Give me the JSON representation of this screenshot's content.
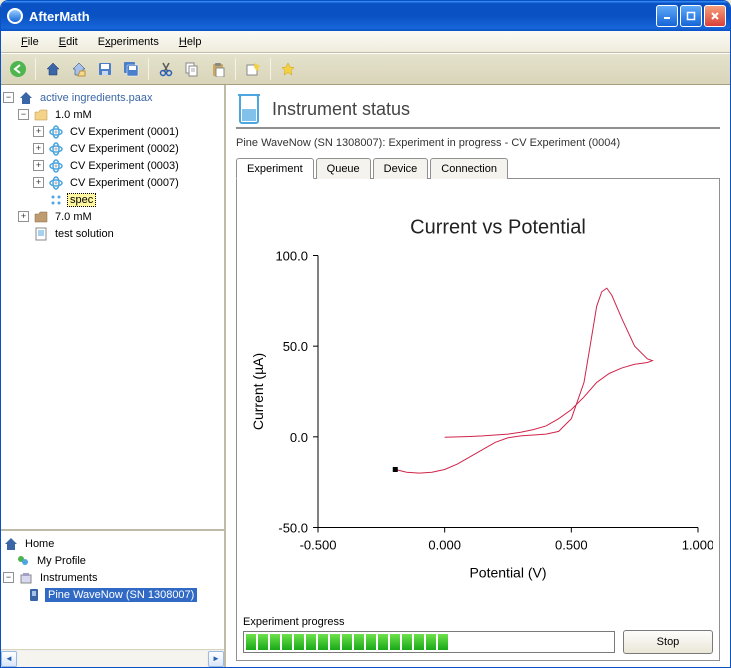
{
  "window": {
    "title": "AfterMath",
    "accent": "#0a52c3"
  },
  "menu": {
    "items": [
      "File",
      "Edit",
      "Experiments",
      "Help"
    ]
  },
  "toolbar": {
    "icons": [
      "back",
      "home",
      "home-open",
      "save",
      "save-multi",
      "|",
      "cut",
      "copy",
      "paste",
      "|",
      "run",
      "|",
      "favorite"
    ]
  },
  "tree": {
    "root": "active ingredients.paax",
    "folder1": {
      "label": "1.0 mM",
      "expanded": true
    },
    "experiments": [
      "CV Experiment (0001)",
      "CV Experiment (0002)",
      "CV Experiment (0003)",
      "CV Experiment (0007)"
    ],
    "spec_label": "spec",
    "folder2": {
      "label": "7.0 mM",
      "expanded": false
    },
    "item2": "test solution"
  },
  "nav": {
    "home": "Home",
    "profile": "My Profile",
    "instruments": "Instruments",
    "device": "Pine WaveNow (SN 1308007)"
  },
  "panel": {
    "title": "Instrument status",
    "status": "Pine WaveNow (SN 1308007): Experiment in progress - CV Experiment (0004)",
    "tabs": [
      "Experiment",
      "Queue",
      "Device",
      "Connection"
    ],
    "active_tab": 0
  },
  "chart": {
    "type": "line",
    "title": "Current vs Potential",
    "xlabel": "Potential (V)",
    "ylabel": "Current (µA)",
    "xlim": [
      -0.5,
      1.0
    ],
    "ylim": [
      -50.0,
      100.0
    ],
    "xticks": [
      -0.5,
      0.0,
      0.5,
      1.0
    ],
    "xtick_labels": [
      "-0.500",
      "0.000",
      "0.500",
      "1.000"
    ],
    "yticks": [
      -50.0,
      0.0,
      50.0,
      100.0
    ],
    "ytick_labels": [
      "-50.0",
      "0.0",
      "50.0",
      "100.0"
    ],
    "title_fontsize": 20,
    "label_fontsize": 14,
    "tick_fontsize": 13,
    "line_color": "#d0244a",
    "line_width": 1,
    "axis_color": "#000000",
    "background_color": "#ffffff",
    "marker_color": "#000000",
    "marker_point": [
      -0.195,
      -18
    ],
    "series": [
      [
        -0.195,
        -18
      ],
      [
        -0.15,
        -19.5
      ],
      [
        -0.1,
        -20
      ],
      [
        -0.05,
        -19.5
      ],
      [
        0.0,
        -18
      ],
      [
        0.05,
        -15
      ],
      [
        0.1,
        -11
      ],
      [
        0.15,
        -7
      ],
      [
        0.2,
        -3
      ],
      [
        0.25,
        -0.5
      ],
      [
        0.3,
        0.5
      ],
      [
        0.35,
        1
      ],
      [
        0.4,
        1.5
      ],
      [
        0.45,
        3
      ],
      [
        0.5,
        10
      ],
      [
        0.55,
        30
      ],
      [
        0.58,
        55
      ],
      [
        0.6,
        72
      ],
      [
        0.62,
        80
      ],
      [
        0.64,
        82
      ],
      [
        0.66,
        78
      ],
      [
        0.7,
        65
      ],
      [
        0.75,
        50
      ],
      [
        0.8,
        43
      ],
      [
        0.82,
        42
      ],
      [
        0.8,
        41
      ],
      [
        0.75,
        40
      ],
      [
        0.7,
        38
      ],
      [
        0.65,
        35
      ],
      [
        0.6,
        30
      ],
      [
        0.55,
        22
      ],
      [
        0.5,
        15
      ],
      [
        0.45,
        10
      ],
      [
        0.4,
        6
      ],
      [
        0.35,
        4
      ],
      [
        0.3,
        2.5
      ],
      [
        0.25,
        1.5
      ],
      [
        0.2,
        1
      ],
      [
        0.15,
        0.5
      ],
      [
        0.1,
        0.2
      ],
      [
        0.05,
        0
      ],
      [
        0.0,
        -0.2
      ]
    ]
  },
  "progress": {
    "label": "Experiment progress",
    "blocks_filled": 17,
    "blocks_total": 34,
    "stop_label": "Stop",
    "fill_color": "#18a818"
  }
}
